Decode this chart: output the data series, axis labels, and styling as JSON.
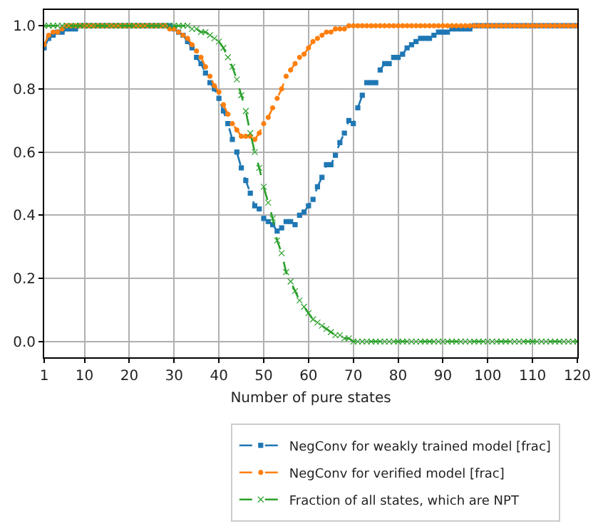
{
  "chart_data": {
    "type": "line",
    "xlabel": "Number of pure states",
    "x": [
      1,
      2,
      3,
      4,
      5,
      6,
      7,
      8,
      9,
      10,
      11,
      12,
      13,
      14,
      15,
      16,
      17,
      18,
      19,
      20,
      21,
      22,
      23,
      24,
      25,
      26,
      27,
      28,
      29,
      30,
      31,
      32,
      33,
      34,
      35,
      36,
      37,
      38,
      39,
      40,
      41,
      42,
      43,
      44,
      45,
      46,
      47,
      48,
      49,
      50,
      51,
      52,
      53,
      54,
      55,
      56,
      57,
      58,
      59,
      60,
      61,
      62,
      63,
      64,
      65,
      66,
      67,
      68,
      69,
      70,
      71,
      72,
      73,
      74,
      75,
      76,
      77,
      78,
      79,
      80,
      81,
      82,
      83,
      84,
      85,
      86,
      87,
      88,
      89,
      90,
      91,
      92,
      93,
      94,
      95,
      96,
      97,
      98,
      99,
      100,
      101,
      102,
      103,
      104,
      105,
      106,
      107,
      108,
      109,
      110,
      111,
      112,
      113,
      114,
      115,
      116,
      117,
      118,
      119,
      120
    ],
    "series": [
      {
        "name": "NegConv for weakly trained model [frac]",
        "color": "#1f77b4",
        "marker": "square",
        "values": [
          0.93,
          0.96,
          0.97,
          0.98,
          0.98,
          0.99,
          0.99,
          0.99,
          1.0,
          1.0,
          1.0,
          1.0,
          1.0,
          1.0,
          1.0,
          1.0,
          1.0,
          1.0,
          1.0,
          1.0,
          1.0,
          1.0,
          1.0,
          1.0,
          1.0,
          1.0,
          1.0,
          1.0,
          1.0,
          0.99,
          0.98,
          0.97,
          0.95,
          0.93,
          0.9,
          0.88,
          0.85,
          0.82,
          0.8,
          0.77,
          0.73,
          0.69,
          0.64,
          0.6,
          0.55,
          0.51,
          0.47,
          0.43,
          0.42,
          0.39,
          0.38,
          0.37,
          0.35,
          0.36,
          0.38,
          0.38,
          0.37,
          0.4,
          0.41,
          0.43,
          0.45,
          0.49,
          0.52,
          0.56,
          0.56,
          0.59,
          0.63,
          0.66,
          0.7,
          0.69,
          0.74,
          0.78,
          0.82,
          0.82,
          0.82,
          0.86,
          0.88,
          0.88,
          0.9,
          0.9,
          0.91,
          0.93,
          0.94,
          0.95,
          0.96,
          0.96,
          0.96,
          0.97,
          0.98,
          0.98,
          0.98,
          0.99,
          0.99,
          0.99,
          0.99,
          0.99,
          1.0,
          1.0,
          1.0,
          1.0,
          1.0,
          1.0,
          1.0,
          1.0,
          1.0,
          1.0,
          1.0,
          1.0,
          1.0,
          1.0,
          1.0,
          1.0,
          1.0,
          1.0,
          1.0,
          1.0,
          1.0,
          1.0,
          1.0,
          1.0
        ]
      },
      {
        "name": "NegConv for verified model [frac]",
        "color": "#ff7f0e",
        "marker": "circle",
        "values": [
          0.94,
          0.97,
          0.98,
          0.98,
          0.99,
          1.0,
          1.0,
          1.0,
          1.0,
          1.0,
          1.0,
          1.0,
          1.0,
          1.0,
          1.0,
          1.0,
          1.0,
          1.0,
          1.0,
          1.0,
          1.0,
          1.0,
          1.0,
          1.0,
          1.0,
          1.0,
          1.0,
          1.0,
          0.99,
          0.99,
          0.98,
          0.97,
          0.96,
          0.94,
          0.92,
          0.9,
          0.87,
          0.84,
          0.81,
          0.79,
          0.75,
          0.72,
          0.69,
          0.67,
          0.65,
          0.65,
          0.65,
          0.64,
          0.66,
          0.69,
          0.71,
          0.74,
          0.77,
          0.8,
          0.84,
          0.86,
          0.88,
          0.9,
          0.91,
          0.93,
          0.95,
          0.96,
          0.97,
          0.98,
          0.98,
          0.99,
          0.99,
          0.99,
          1.0,
          1.0,
          1.0,
          1.0,
          1.0,
          1.0,
          1.0,
          1.0,
          1.0,
          1.0,
          1.0,
          1.0,
          1.0,
          1.0,
          1.0,
          1.0,
          1.0,
          1.0,
          1.0,
          1.0,
          1.0,
          1.0,
          1.0,
          1.0,
          1.0,
          1.0,
          1.0,
          1.0,
          1.0,
          1.0,
          1.0,
          1.0,
          1.0,
          1.0,
          1.0,
          1.0,
          1.0,
          1.0,
          1.0,
          1.0,
          1.0,
          1.0,
          1.0,
          1.0,
          1.0,
          1.0,
          1.0,
          1.0,
          1.0,
          1.0,
          1.0,
          1.0
        ]
      },
      {
        "name": "Fraction of all states, which are NPT",
        "color": "#2ca02c",
        "marker": "cross",
        "values": [
          1.0,
          1.0,
          1.0,
          1.0,
          1.0,
          1.0,
          1.0,
          1.0,
          1.0,
          1.0,
          1.0,
          1.0,
          1.0,
          1.0,
          1.0,
          1.0,
          1.0,
          1.0,
          1.0,
          1.0,
          1.0,
          1.0,
          1.0,
          1.0,
          1.0,
          1.0,
          1.0,
          1.0,
          1.0,
          1.0,
          1.0,
          1.0,
          1.0,
          0.99,
          0.99,
          0.98,
          0.98,
          0.97,
          0.96,
          0.95,
          0.93,
          0.9,
          0.87,
          0.83,
          0.78,
          0.73,
          0.66,
          0.6,
          0.55,
          0.49,
          0.44,
          0.39,
          0.32,
          0.28,
          0.22,
          0.19,
          0.16,
          0.13,
          0.11,
          0.09,
          0.07,
          0.06,
          0.05,
          0.04,
          0.03,
          0.02,
          0.02,
          0.01,
          0.01,
          0.0,
          0.0,
          0.0,
          0.0,
          0.0,
          0.0,
          0.0,
          0.0,
          0.0,
          0.0,
          0.0,
          0.0,
          0.0,
          0.0,
          0.0,
          0.0,
          0.0,
          0.0,
          0.0,
          0.0,
          0.0,
          0.0,
          0.0,
          0.0,
          0.0,
          0.0,
          0.0,
          0.0,
          0.0,
          0.0,
          0.0,
          0.0,
          0.0,
          0.0,
          0.0,
          0.0,
          0.0,
          0.0,
          0.0,
          0.0,
          0.0,
          0.0,
          0.0,
          0.0,
          0.0,
          0.0,
          0.0,
          0.0,
          0.0,
          0.0,
          0.0
        ]
      }
    ],
    "xlim": [
      1,
      120
    ],
    "xticks": [
      1,
      10,
      20,
      30,
      40,
      50,
      60,
      70,
      80,
      90,
      100,
      110,
      120
    ],
    "ylim": [
      -0.05,
      1.05
    ],
    "yticks": [
      {
        "value": 0,
        "label": "0.0"
      },
      {
        "value": 0.2,
        "label": "0.2"
      },
      {
        "value": 0.4,
        "label": "0.4"
      },
      {
        "value": 0.6,
        "label": "0.6"
      },
      {
        "value": 0.8,
        "label": "0.8"
      },
      {
        "value": 1,
        "label": "1.0"
      }
    ],
    "grid": true,
    "legend": "bottom",
    "line_style": "dashed"
  }
}
